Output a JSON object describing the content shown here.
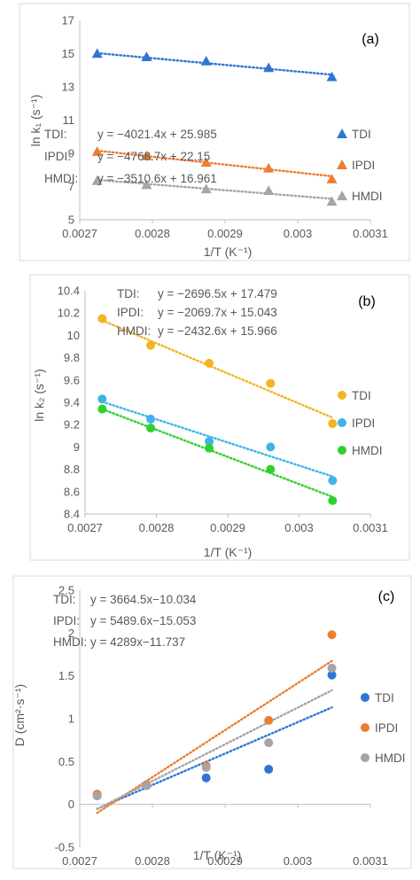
{
  "chart_data": [
    {
      "type": "scatter",
      "panel_label": "(a)",
      "xlabel": "1/T (K⁻¹)",
      "ylabel": "ln k₁ (s⁻¹)",
      "xlim": [
        0.0027,
        0.0031
      ],
      "ylim": [
        5,
        17
      ],
      "xticks": [
        0.0027,
        0.0028,
        0.0029,
        0.003,
        0.0031
      ],
      "xtick_labels": [
        "0.0027",
        "0.0028",
        "0.0029",
        "0.003",
        "0.0031"
      ],
      "yticks": [
        5,
        7,
        9,
        11,
        13,
        15,
        17
      ],
      "ytick_labels": [
        "5",
        "7",
        "9",
        "11",
        "13",
        "15",
        "17"
      ],
      "marker": "triangle",
      "grid": false,
      "legend_position": "right",
      "x": [
        0.002724,
        0.002792,
        0.002874,
        0.00296,
        0.003047
      ],
      "series": [
        {
          "name": "TDI",
          "color": "#2e75d6",
          "values": [
            15.0,
            14.8,
            14.55,
            14.15,
            13.6
          ],
          "fit": {
            "slope": -4021.4,
            "intercept": 25.985
          }
        },
        {
          "name": "IPDI",
          "color": "#ed7d31",
          "values": [
            9.1,
            8.85,
            8.45,
            8.1,
            7.45
          ],
          "fit": {
            "slope": -4768.7,
            "intercept": 22.15
          }
        },
        {
          "name": "HMDI",
          "color": "#a5a5a5",
          "values": [
            7.35,
            7.1,
            6.85,
            6.75,
            6.1
          ],
          "fit": {
            "slope": -3510.6,
            "intercept": 16.961
          }
        }
      ],
      "equations": [
        {
          "label": "TDI:",
          "text": "y = −4021.4x + 25.985"
        },
        {
          "label": "IPDI:",
          "text": "y = −4768.7x + 22.15"
        },
        {
          "label": "HMDI:",
          "text": "y = −3510.6x + 16.961"
        }
      ]
    },
    {
      "type": "scatter",
      "panel_label": "(b)",
      "xlabel": "1/T (K⁻¹)",
      "ylabel": "ln k₂ (s⁻¹)",
      "xlim": [
        0.0027,
        0.0031
      ],
      "ylim": [
        8.4,
        10.4
      ],
      "xticks": [
        0.0027,
        0.0028,
        0.0029,
        0.003,
        0.0031
      ],
      "xtick_labels": [
        "0.0027",
        "0.0028",
        "0.0029",
        "0.003",
        "0.0031"
      ],
      "yticks": [
        8.4,
        8.6,
        8.8,
        9,
        9.2,
        9.4,
        9.6,
        9.8,
        10,
        10.2,
        10.4
      ],
      "ytick_labels": [
        "8.4",
        "8.6",
        "8.8",
        "9",
        "9.2",
        "9.4",
        "9.6",
        "9.8",
        "10",
        "10.2",
        "10.4"
      ],
      "marker": "circle",
      "grid": false,
      "legend_position": "right",
      "x": [
        0.002724,
        0.002792,
        0.002874,
        0.00296,
        0.003047
      ],
      "series": [
        {
          "name": "TDI",
          "color": "#f5b324",
          "values": [
            10.15,
            9.91,
            9.75,
            9.57,
            9.21
          ],
          "fit": {
            "slope": -2696.5,
            "intercept": 17.479
          }
        },
        {
          "name": "IPDI",
          "color": "#3fb3ea",
          "values": [
            9.43,
            9.25,
            9.05,
            9.0,
            8.7
          ],
          "fit": {
            "slope": -2069.7,
            "intercept": 15.043
          }
        },
        {
          "name": "HMDI",
          "color": "#2fd12f",
          "values": [
            9.34,
            9.17,
            8.99,
            8.8,
            8.52
          ],
          "fit": {
            "slope": -2432.6,
            "intercept": 15.966
          }
        }
      ],
      "equations": [
        {
          "label": "TDI:",
          "text": "y = −2696.5x + 17.479"
        },
        {
          "label": "IPDI:",
          "text": "y = −2069.7x + 15.043"
        },
        {
          "label": "HMDI:",
          "text": "y = −2432.6x + 15.966"
        }
      ]
    },
    {
      "type": "scatter",
      "panel_label": "(c)",
      "xlabel": "1/T (K⁻¹)",
      "ylabel": "D (cm²·s⁻¹)",
      "xlim": [
        0.0027,
        0.0031
      ],
      "ylim": [
        -0.5,
        2.5
      ],
      "xticks": [
        0.0027,
        0.0028,
        0.0029,
        0.003,
        0.0031
      ],
      "xtick_labels": [
        "0.0027",
        "0.0028",
        "0.0029",
        "0.003",
        "0.0031"
      ],
      "yticks": [
        -0.5,
        0,
        0.5,
        1,
        1.5,
        2,
        2.5
      ],
      "ytick_labels": [
        "-0.5",
        "0",
        "0.5",
        "1",
        "1.5",
        "2",
        "2.5"
      ],
      "marker": "circle",
      "grid": false,
      "legend_position": "right",
      "x": [
        0.002724,
        0.002792,
        0.002874,
        0.00296,
        0.003047
      ],
      "series": [
        {
          "name": "TDI",
          "color": "#2e75d6",
          "values": [
            0.1,
            0.22,
            0.31,
            0.41,
            1.51
          ],
          "fit": {
            "slope": 3664.5,
            "intercept": -10.034
          }
        },
        {
          "name": "IPDI",
          "color": "#ed7d31",
          "values": [
            0.12,
            0.23,
            0.45,
            0.98,
            1.98
          ],
          "fit": {
            "slope": 5489.6,
            "intercept": -15.053
          }
        },
        {
          "name": "HMDI",
          "color": "#a5a5a5",
          "values": [
            0.1,
            0.22,
            0.43,
            0.72,
            1.59
          ],
          "fit": {
            "slope": 4289,
            "intercept": -11.737
          }
        }
      ],
      "equations": [
        {
          "label": "TDI:",
          "text": "y = 3664.5x−10.034"
        },
        {
          "label": "IPDI:",
          "text": "y = 5489.6x−15.053"
        },
        {
          "label": "HMDI:",
          "text": "y = 4289x−11.737"
        }
      ]
    }
  ]
}
